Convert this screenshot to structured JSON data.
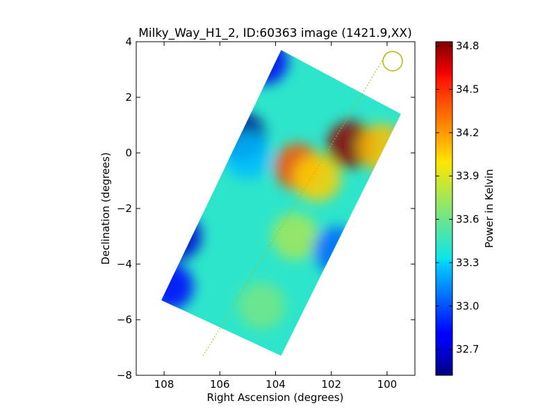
{
  "chart_data": {
    "type": "heatmap",
    "title": "Milky_Way_H1_2, ID:60363 image (1421.9,XX)",
    "xlabel": "Right Ascension (degrees)",
    "ylabel": "Declination (degrees)",
    "xlim": [
      109,
      99
    ],
    "ylim": [
      -8,
      4
    ],
    "x_ticks": [
      108,
      106,
      104,
      102,
      100
    ],
    "y_ticks": [
      4,
      2,
      0,
      -2,
      -4,
      -6,
      -8
    ],
    "colorbar": {
      "label": "Power in Kelvin",
      "range": [
        32.52,
        34.83
      ],
      "ticks": [
        32.7,
        33.0,
        33.3,
        33.6,
        33.9,
        34.2,
        34.5,
        34.8
      ],
      "colormap": "jet"
    },
    "survey_region_corners": [
      [
        103.8,
        3.7
      ],
      [
        99.5,
        1.4
      ],
      [
        103.8,
        -7.3
      ],
      [
        108.1,
        -5.3
      ]
    ],
    "map_features": [
      {
        "ra": 105.2,
        "dec": 0.6,
        "power": 32.55
      },
      {
        "ra": 104.4,
        "dec": 3.3,
        "power": 32.75
      },
      {
        "ra": 107.5,
        "dec": -3.0,
        "power": 32.68
      },
      {
        "ra": 107.8,
        "dec": -4.8,
        "power": 32.78
      },
      {
        "ra": 105.0,
        "dec": -0.1,
        "power": 33.25
      },
      {
        "ra": 101.3,
        "dec": 0.3,
        "power": 34.8
      },
      {
        "ra": 103.2,
        "dec": -0.5,
        "power": 34.4
      },
      {
        "ra": 102.5,
        "dec": -0.9,
        "power": 34.05
      },
      {
        "ra": 100.2,
        "dec": 0.2,
        "power": 34.1
      },
      {
        "ra": 103.3,
        "dec": -3.0,
        "power": 33.75
      },
      {
        "ra": 101.8,
        "dec": -3.5,
        "power": 33.05
      },
      {
        "ra": 104.5,
        "dec": -5.5,
        "power": 33.62
      }
    ],
    "galactic_plane_line": {
      "start": [
        106.6,
        -7.3
      ],
      "end": [
        100.0,
        3.6
      ],
      "color": "#b5b800",
      "style": "dotted"
    },
    "beam_marker": {
      "ra": 99.8,
      "dec": 3.3,
      "color": "#b5b800"
    },
    "grid": false
  }
}
